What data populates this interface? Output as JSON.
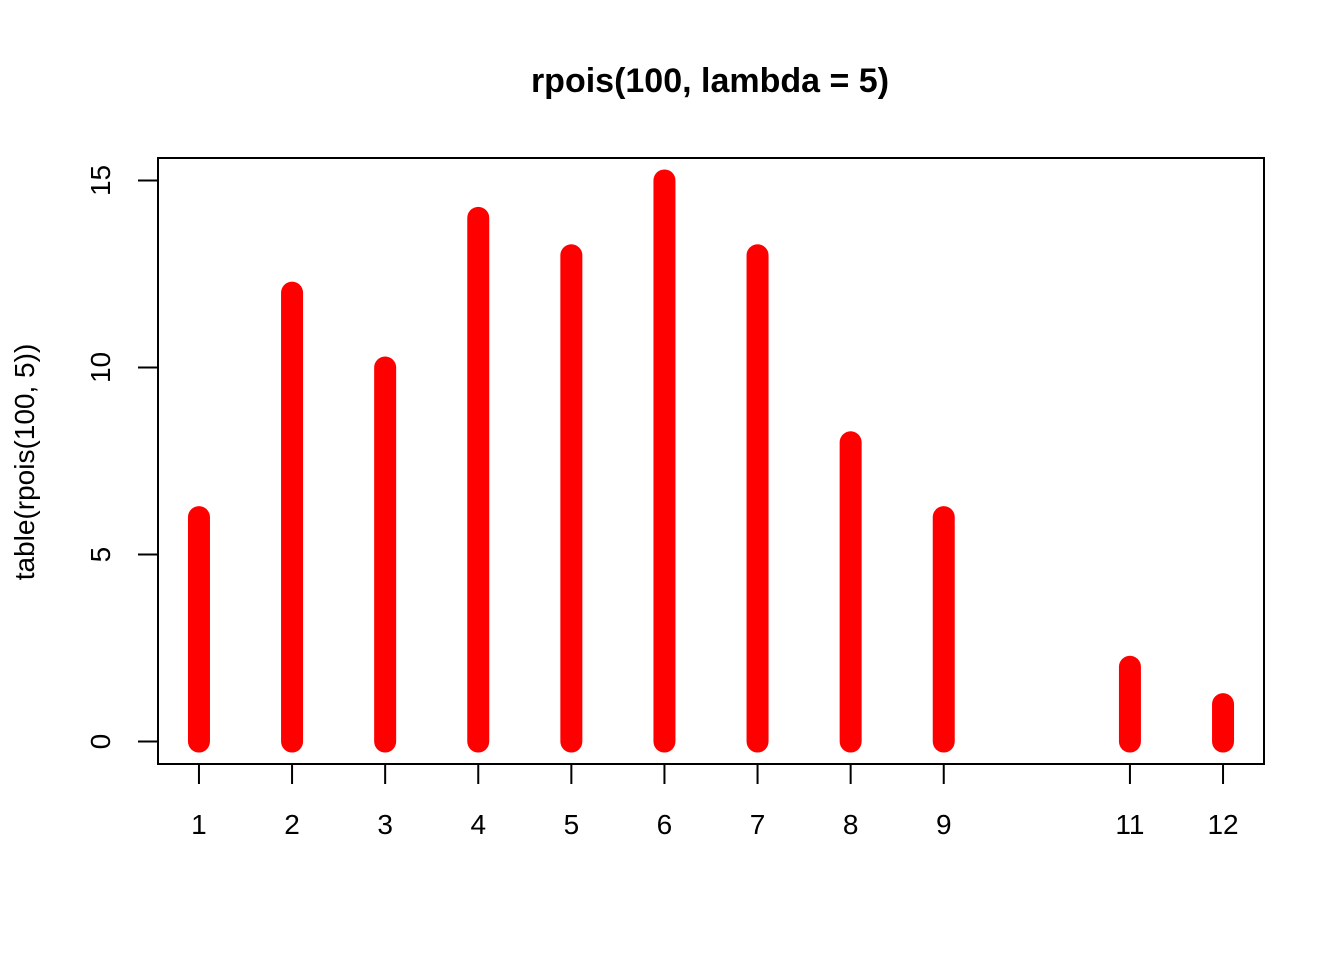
{
  "chart_data": {
    "type": "bar",
    "title": "rpois(100, lambda = 5)",
    "xlabel": "",
    "ylabel": "table(rpois(100, 5))",
    "x": [
      1,
      2,
      3,
      4,
      5,
      6,
      7,
      8,
      9,
      11,
      12
    ],
    "values": [
      6,
      12,
      10,
      14,
      13,
      15,
      13,
      8,
      6,
      2,
      1
    ],
    "x_ticks": [
      "1",
      "2",
      "3",
      "4",
      "5",
      "6",
      "7",
      "8",
      "9",
      "11",
      "12"
    ],
    "y_ticks": [
      "0",
      "5",
      "10",
      "15"
    ],
    "xlim": [
      0.56,
      12.44
    ],
    "ylim": [
      -0.6,
      15.6
    ],
    "bar_color": "#ff0000",
    "grid": false,
    "legend": "none"
  }
}
